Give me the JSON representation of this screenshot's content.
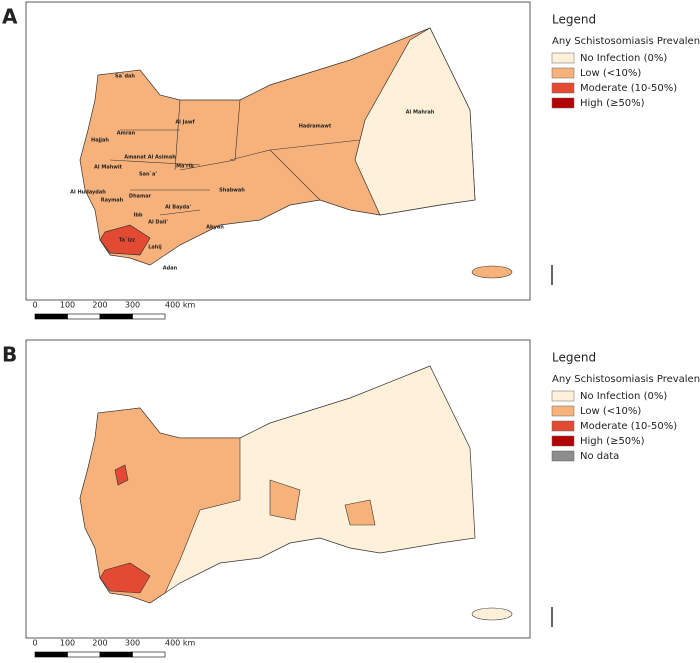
{
  "panels": [
    {
      "label": "A",
      "legend": {
        "heading": "Legend",
        "title": "Any Schistosomiasis Prevalence",
        "items": [
          "No Infection (0%)",
          "Low (<10%)",
          "Moderate (10-50%)",
          "High (≥50%)"
        ]
      },
      "region_labels": [
        "Sa`dah",
        "Al Jawf",
        "Hajjah",
        "Amran",
        "Hadramawt",
        "Al Mahrah",
        "Al Mahwit",
        "Amanat Al Asimah",
        "Ma'rib",
        "San`a'",
        "Al Hudaydah",
        "Dhamar",
        "Raymah",
        "Shabwah",
        "Al Bayda'",
        "Ibb",
        "Al Dali'",
        "Abyan",
        "Ta`izz",
        "Lahij",
        "Adan"
      ],
      "scale_labels": [
        "0",
        "100",
        "200",
        "300",
        "400 km"
      ]
    },
    {
      "label": "B",
      "legend": {
        "heading": "Legend",
        "title": "Any Schistosomiasis Prevalence",
        "items": [
          "No Infection (0%)",
          "Low (<10%)",
          "Moderate (10-50%)",
          "High (≥50%)",
          "No data"
        ]
      },
      "scale_labels": [
        "0",
        "100",
        "200",
        "300",
        "400 km"
      ]
    }
  ]
}
